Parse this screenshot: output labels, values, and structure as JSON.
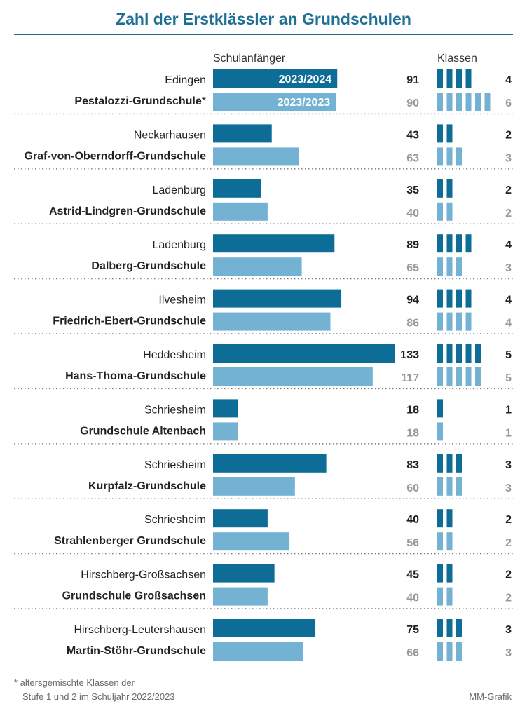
{
  "title": "Zahl der Erstklässler an Grundschulen",
  "headers": {
    "left": "Schulanfänger",
    "right": "Klassen"
  },
  "colors": {
    "current": "#0d6d97",
    "previous": "#74b2d4",
    "prev_text": "#9a9a9a",
    "title": "#1f6f95"
  },
  "chart_data": {
    "type": "bar",
    "series": [
      {
        "name": "2023/2024",
        "label": "2023/2024"
      },
      {
        "name": "2023/2023",
        "label": "2023/2023"
      }
    ],
    "groups": [
      {
        "town": "Edingen",
        "school": "Pestalozzi-Grundschule",
        "marker": "*",
        "current": 91,
        "previous": 90,
        "classes_current": 4,
        "classes_previous": 6
      },
      {
        "town": "Neckarhausen",
        "school": "Graf-von-Oberndorff-Grundschule",
        "current": 43,
        "previous": 63,
        "classes_current": 2,
        "classes_previous": 3
      },
      {
        "town": "Ladenburg",
        "school": "Astrid-Lindgren-Grundschule",
        "current": 35,
        "previous": 40,
        "classes_current": 2,
        "classes_previous": 2
      },
      {
        "town": "Ladenburg",
        "school": "Dalberg-Grundschule",
        "current": 89,
        "previous": 65,
        "classes_current": 4,
        "classes_previous": 3
      },
      {
        "town": "Ilvesheim",
        "school": "Friedrich-Ebert-Grundschule",
        "current": 94,
        "previous": 86,
        "classes_current": 4,
        "classes_previous": 4
      },
      {
        "town": "Heddesheim",
        "school": "Hans-Thoma-Grundschule",
        "current": 133,
        "previous": 117,
        "classes_current": 5,
        "classes_previous": 5
      },
      {
        "town": "Schriesheim",
        "school": "Grundschule Altenbach",
        "current": 18,
        "previous": 18,
        "classes_current": 1,
        "classes_previous": 1
      },
      {
        "town": "Schriesheim",
        "school": "Kurpfalz-Grundschule",
        "current": 83,
        "previous": 60,
        "classes_current": 3,
        "classes_previous": 3
      },
      {
        "town": "Schriesheim",
        "school": "Strahlenberger Grundschule",
        "current": 40,
        "previous": 56,
        "classes_current": 2,
        "classes_previous": 2
      },
      {
        "town": "Hirschberg-Großsachsen",
        "school": "Grundschule Großsachsen",
        "current": 45,
        "previous": 40,
        "classes_current": 2,
        "classes_previous": 2
      },
      {
        "town": "Hirschberg-Leutershausen",
        "school": "Martin-Stöhr-Grundschule",
        "current": 75,
        "previous": 66,
        "classes_current": 3,
        "classes_previous": 3
      }
    ]
  },
  "footnote": {
    "line1": "* altersgemischte Klassen der",
    "line2": "Stufe 1 und 2 im Schuljahr 2022/2023"
  },
  "credit": "MM-Grafik"
}
